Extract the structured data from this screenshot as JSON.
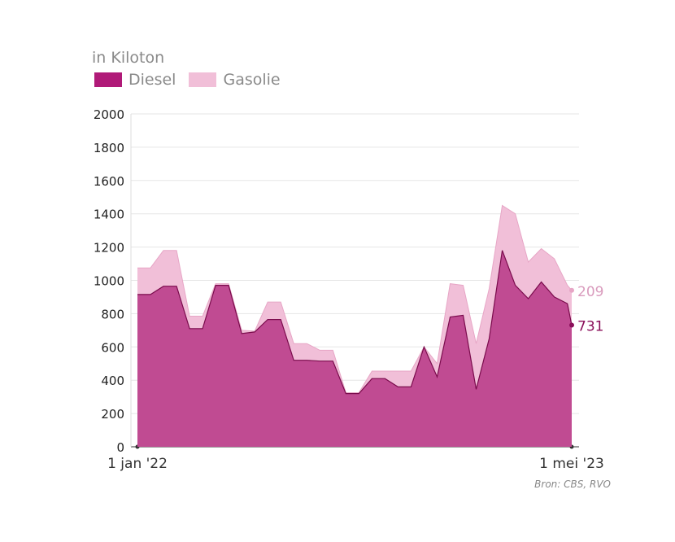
{
  "header": {
    "unit_label": "in Kiloton"
  },
  "legend": [
    {
      "name": "Diesel",
      "color": "#b01a78"
    },
    {
      "name": "Gasolie",
      "color": "#f1bfd8"
    }
  ],
  "source": "Bron: CBS, RVO",
  "chart_data": {
    "type": "area",
    "stacked": true,
    "title": "",
    "xlabel": "",
    "ylabel": "in Kiloton",
    "ylim": [
      0,
      2000
    ],
    "yticks": [
      0,
      200,
      400,
      600,
      800,
      1000,
      1200,
      1400,
      1600,
      1800,
      2000
    ],
    "xticks": [
      "1 jan '22",
      "1 mei '23"
    ],
    "grid": true,
    "legend_position": "top-left",
    "x": [
      0,
      3,
      6,
      9,
      12,
      15,
      18,
      21,
      24,
      27,
      30,
      33,
      36,
      39,
      42,
      45,
      48,
      51,
      54,
      57,
      60,
      63,
      66,
      69,
      72,
      75,
      78,
      81,
      84,
      87,
      90,
      93,
      96,
      99,
      100
    ],
    "x_note": "percentage of the period from 1 jan '22 to 1 mei '23",
    "series": [
      {
        "name": "Diesel",
        "color": "#b01a78",
        "values": [
          915,
          915,
          965,
          965,
          710,
          710,
          970,
          970,
          680,
          690,
          765,
          765,
          520,
          520,
          515,
          515,
          320,
          320,
          410,
          410,
          360,
          360,
          600,
          420,
          780,
          790,
          345,
          650,
          1180,
          970,
          890,
          990,
          900,
          860,
          731
        ],
        "end_label": "731"
      },
      {
        "name": "Gasolie",
        "color": "#f1bfd8",
        "values": [
          160,
          160,
          215,
          215,
          75,
          75,
          10,
          10,
          20,
          5,
          105,
          105,
          100,
          100,
          65,
          65,
          5,
          5,
          45,
          45,
          95,
          95,
          0,
          80,
          200,
          180,
          275,
          300,
          270,
          430,
          220,
          200,
          230,
          110,
          209
        ],
        "end_label": "209"
      }
    ]
  }
}
